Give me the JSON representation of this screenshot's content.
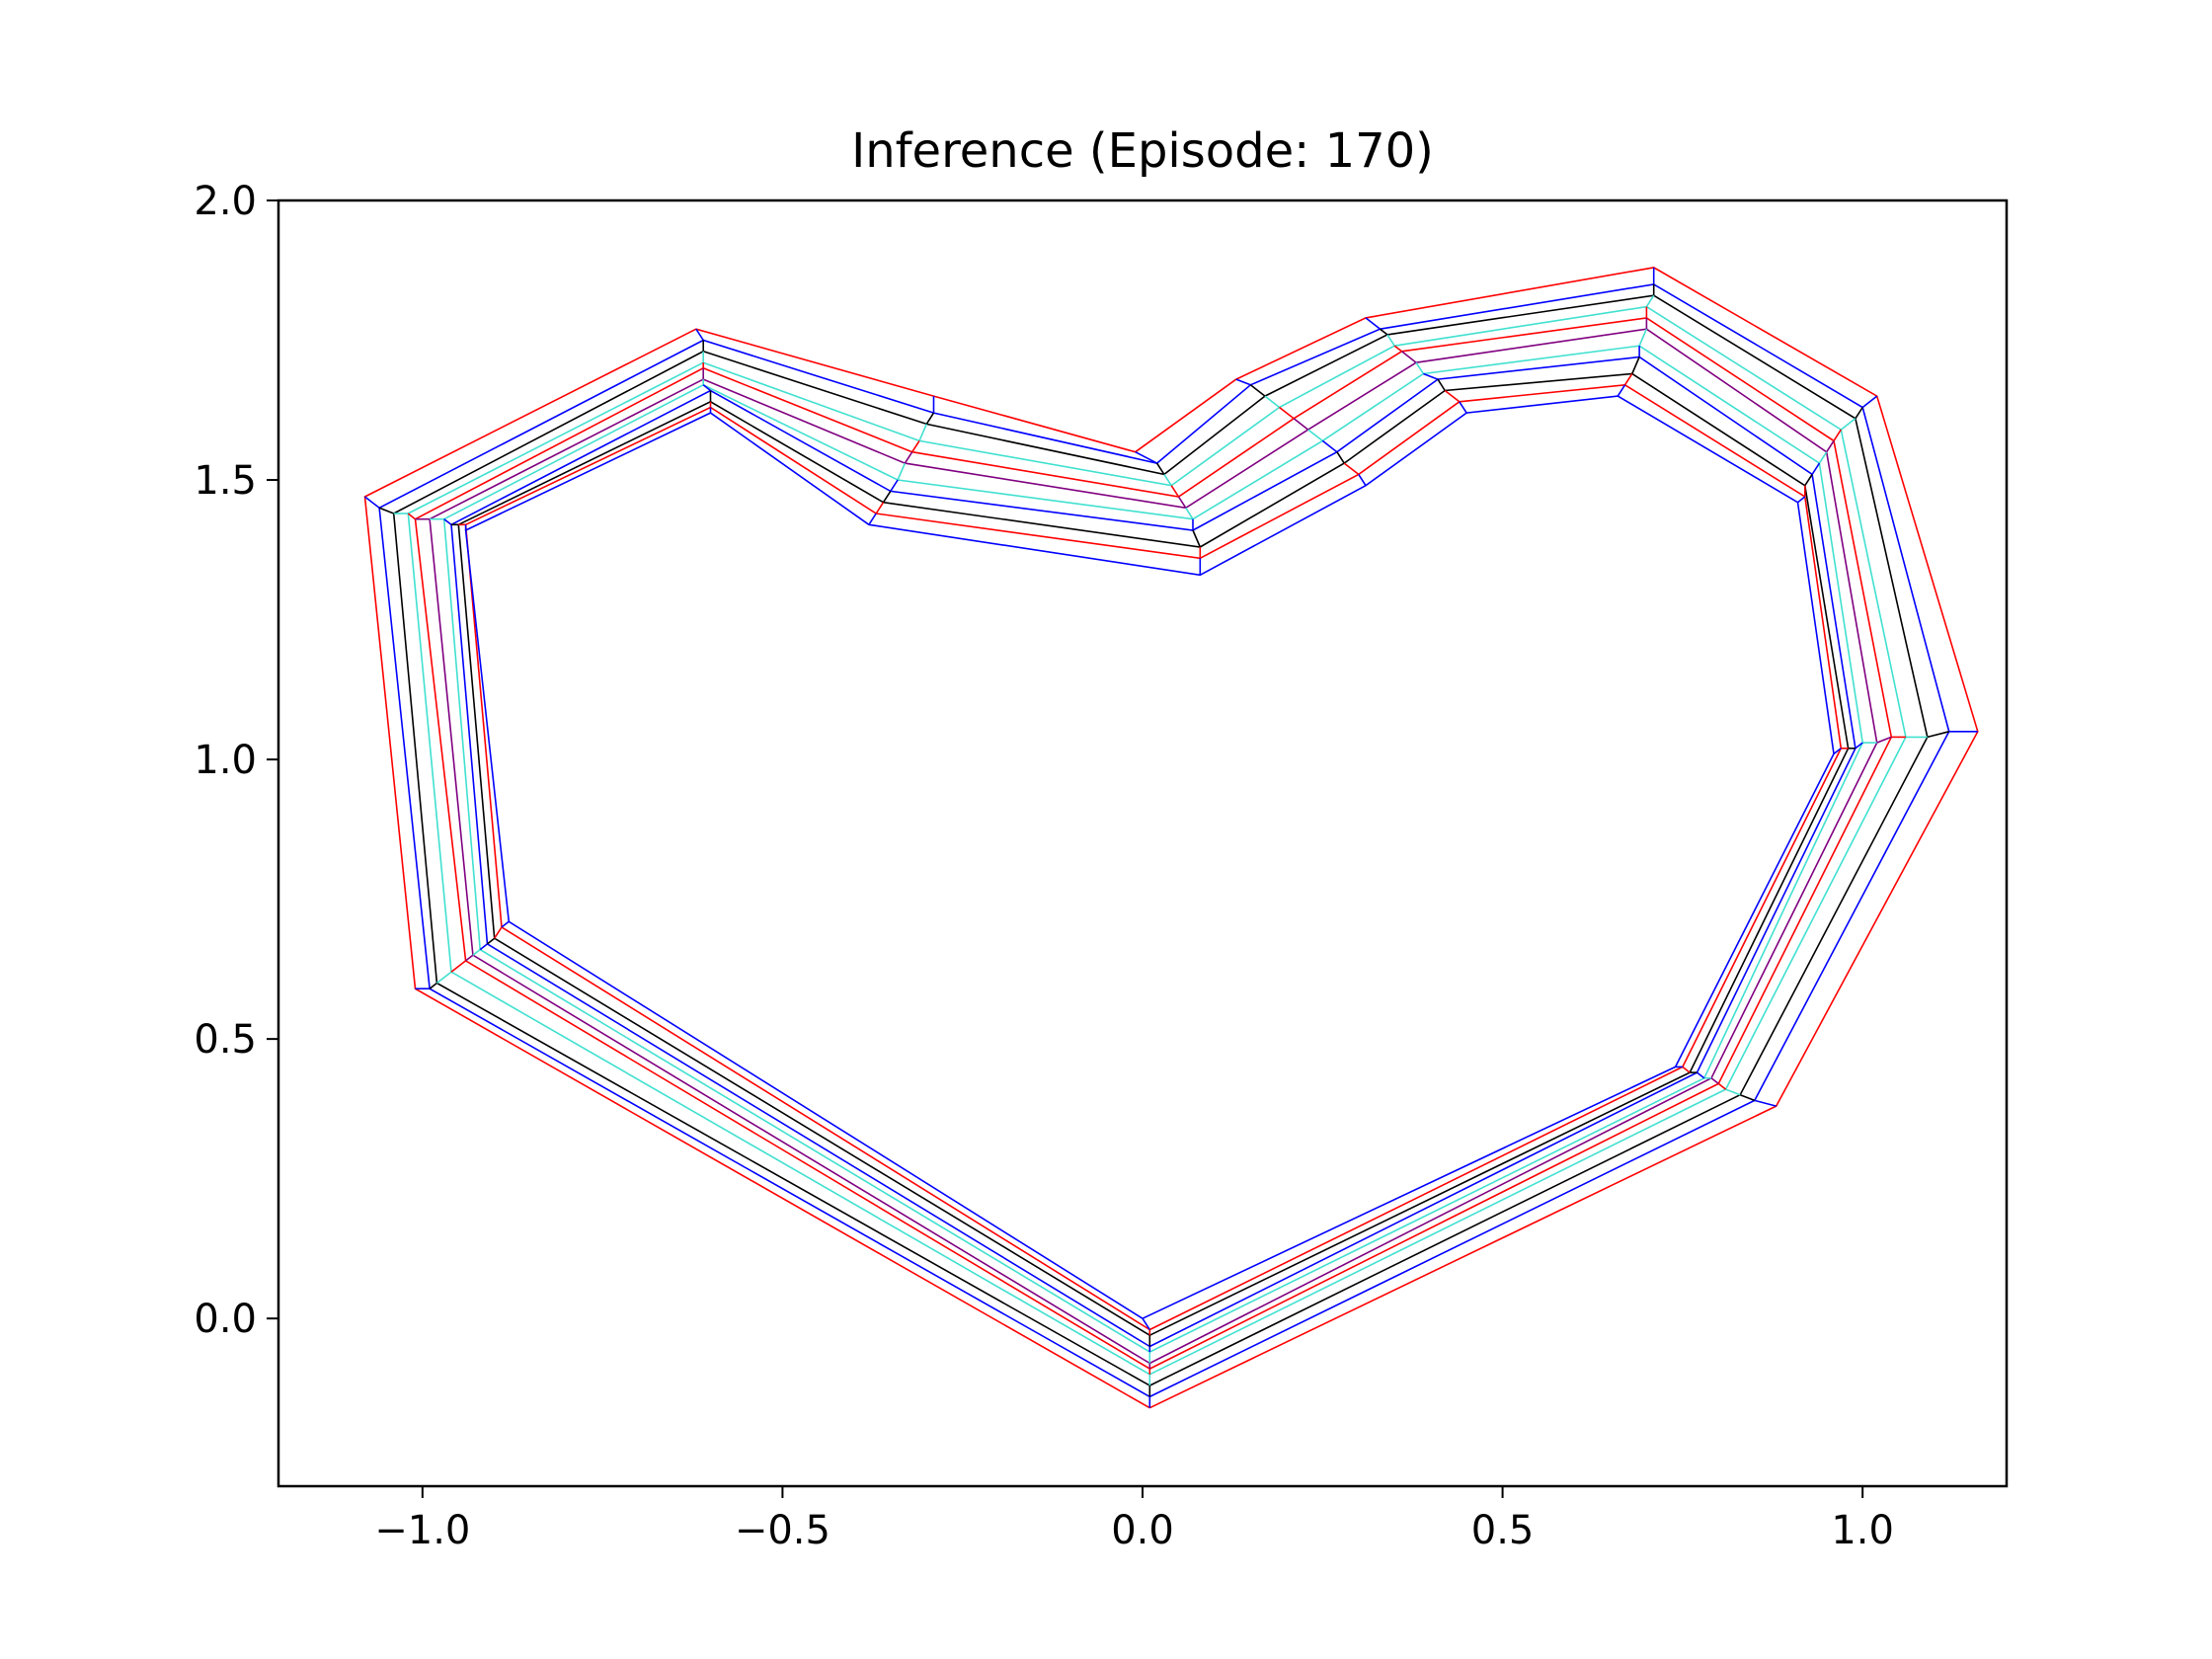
{
  "chart_data": {
    "type": "line",
    "title": "Inference (Episode: 170)",
    "xlabel": "",
    "ylabel": "",
    "xlim": [
      -1.2,
      1.2
    ],
    "ylim": [
      -0.3,
      2.0
    ],
    "xticks": [
      -1.0,
      -0.5,
      0.0,
      0.5,
      1.0
    ],
    "xtick_labels": [
      "−1.0",
      "−0.5",
      "0.0",
      "0.5",
      "1.0"
    ],
    "yticks": [
      0.0,
      0.5,
      1.0,
      1.5,
      2.0
    ],
    "ytick_labels": [
      "0.0",
      "0.5",
      "1.0",
      "1.5",
      "2.0"
    ],
    "grid": false,
    "legend": "none",
    "line_colors": [
      "#ff0000",
      "#0000ff",
      "#000000",
      "#40e0d0",
      "#ff0000",
      "#800080",
      "#40e0d0",
      "#0000ff",
      "#000000",
      "#ff0000",
      "#0000ff"
    ],
    "series": [
      {
        "color": "#ff0000",
        "x": [
          0.01,
          0.88,
          1.16,
          1.02,
          0.71,
          0.31,
          0.13,
          -0.01,
          -0.29,
          -0.62,
          -1.08,
          -1.01,
          0.01
        ],
        "y": [
          -0.16,
          0.38,
          1.05,
          1.65,
          1.88,
          1.79,
          1.68,
          1.55,
          1.65,
          1.77,
          1.47,
          0.59,
          -0.16
        ]
      },
      {
        "color": "#0000ff",
        "x": [
          0.01,
          0.85,
          1.12,
          1.0,
          0.71,
          0.33,
          0.15,
          0.02,
          -0.29,
          -0.61,
          -1.06,
          -0.99,
          0.01
        ],
        "y": [
          -0.14,
          0.39,
          1.05,
          1.63,
          1.85,
          1.77,
          1.67,
          1.53,
          1.62,
          1.75,
          1.45,
          0.59,
          -0.14
        ]
      },
      {
        "color": "#000000",
        "x": [
          0.01,
          0.83,
          1.09,
          0.99,
          0.71,
          0.34,
          0.17,
          0.03,
          -0.3,
          -0.61,
          -1.04,
          -0.98,
          0.01
        ],
        "y": [
          -0.12,
          0.4,
          1.04,
          1.61,
          1.83,
          1.76,
          1.65,
          1.51,
          1.6,
          1.73,
          1.44,
          0.6,
          -0.12
        ]
      },
      {
        "color": "#40e0d0",
        "x": [
          0.01,
          0.81,
          1.06,
          0.97,
          0.7,
          0.35,
          0.19,
          0.04,
          -0.31,
          -0.61,
          -1.02,
          -0.96,
          0.01
        ],
        "y": [
          -0.1,
          0.41,
          1.04,
          1.59,
          1.81,
          1.74,
          1.63,
          1.49,
          1.57,
          1.71,
          1.44,
          0.62,
          -0.1
        ]
      },
      {
        "color": "#ff0000",
        "x": [
          0.01,
          0.8,
          1.04,
          0.96,
          0.7,
          0.36,
          0.21,
          0.05,
          -0.32,
          -0.61,
          -1.01,
          -0.94,
          0.01
        ],
        "y": [
          -0.09,
          0.42,
          1.04,
          1.57,
          1.79,
          1.73,
          1.61,
          1.47,
          1.55,
          1.7,
          1.43,
          0.64,
          -0.09
        ]
      },
      {
        "color": "#800080",
        "x": [
          0.01,
          0.79,
          1.02,
          0.95,
          0.7,
          0.38,
          0.23,
          0.06,
          -0.33,
          -0.61,
          -0.99,
          -0.93,
          0.01
        ],
        "y": [
          -0.08,
          0.43,
          1.03,
          1.55,
          1.77,
          1.71,
          1.59,
          1.45,
          1.53,
          1.68,
          1.43,
          0.65,
          -0.08
        ]
      },
      {
        "color": "#40e0d0",
        "x": [
          0.01,
          0.78,
          1.0,
          0.94,
          0.69,
          0.39,
          0.25,
          0.07,
          -0.34,
          -0.61,
          -0.97,
          -0.92,
          0.01
        ],
        "y": [
          -0.06,
          0.43,
          1.03,
          1.53,
          1.74,
          1.69,
          1.57,
          1.43,
          1.5,
          1.67,
          1.43,
          0.66,
          -0.06
        ]
      },
      {
        "color": "#0000ff",
        "x": [
          0.01,
          0.77,
          0.99,
          0.93,
          0.69,
          0.41,
          0.27,
          0.07,
          -0.35,
          -0.6,
          -0.96,
          -0.91,
          0.01
        ],
        "y": [
          -0.05,
          0.44,
          1.02,
          1.51,
          1.72,
          1.68,
          1.55,
          1.41,
          1.48,
          1.66,
          1.42,
          0.67,
          -0.05
        ]
      },
      {
        "color": "#000000",
        "x": [
          0.01,
          0.76,
          0.98,
          0.92,
          0.68,
          0.42,
          0.28,
          0.08,
          -0.36,
          -0.6,
          -0.95,
          -0.9,
          0.01
        ],
        "y": [
          -0.03,
          0.44,
          1.02,
          1.49,
          1.69,
          1.66,
          1.53,
          1.38,
          1.46,
          1.64,
          1.42,
          0.68,
          -0.03
        ]
      },
      {
        "color": "#ff0000",
        "x": [
          0.01,
          0.75,
          0.97,
          0.92,
          0.67,
          0.44,
          0.3,
          0.08,
          -0.37,
          -0.6,
          -0.94,
          -0.89,
          0.01
        ],
        "y": [
          -0.02,
          0.45,
          1.02,
          1.47,
          1.67,
          1.64,
          1.51,
          1.36,
          1.44,
          1.63,
          1.42,
          0.7,
          -0.02
        ]
      },
      {
        "color": "#0000ff",
        "x": [
          0.0,
          0.74,
          0.96,
          0.91,
          0.66,
          0.45,
          0.31,
          0.08,
          -0.38,
          -0.6,
          -0.94,
          -0.88,
          0.0
        ],
        "y": [
          0.0,
          0.45,
          1.01,
          1.46,
          1.65,
          1.62,
          1.49,
          1.33,
          1.42,
          1.62,
          1.41,
          0.71,
          0.0
        ]
      }
    ]
  }
}
